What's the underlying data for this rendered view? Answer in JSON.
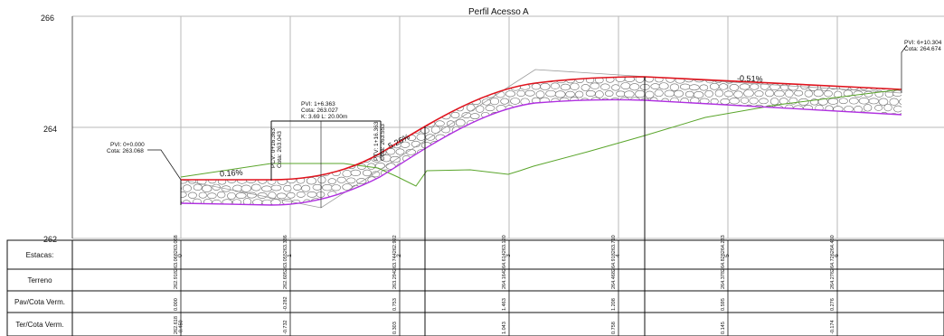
{
  "drawing": {
    "title": "Perfil Acesso A",
    "elevation_labels": [
      "266",
      "264",
      "262"
    ],
    "grades": {
      "g1": "0.16%",
      "g2": "5.26%",
      "g3": "-0.51%"
    },
    "pvi_notes": {
      "pv0": [
        "PVI: 0+0.000",
        "Cota: 263.068"
      ],
      "pv1": [
        "PVI: 1+6.363",
        "Cota: 263.027",
        "K: 3.69    L: 20.00m"
      ],
      "pv6": [
        "PVI: 6+10.304",
        "Cota: 264.674"
      ],
      "pvc": [
        "PCV: 0+16.363",
        "Cota: 263.043"
      ],
      "ptv": [
        "PTV: 1+16.363",
        "Cota: 263.553"
      ]
    },
    "colors": {
      "grid": "#b9b9b9",
      "pavement": "#e0141e",
      "subgrade": "#b030e0",
      "terrain": "#5aa52b",
      "fill_stone": "#6a6a6a",
      "text": "#111111"
    }
  },
  "table": {
    "row_labels": [
      "Estacas:",
      "Terreno",
      "Pav/Cota Verm.",
      "Ter/Cota Verm."
    ],
    "stations": [
      {
        "estaca": "0",
        "terreno": [
          "262.918",
          "263.068",
          "263.068"
        ],
        "pav": [
          "0.000"
        ],
        "ter": [
          "262.618",
          "-0.450"
        ]
      },
      {
        "estaca": "1",
        "terreno": [
          "262.605",
          "263.055",
          "263.336"
        ],
        "pav": [
          "-0.282"
        ],
        "ter": [
          "-0.732"
        ]
      },
      {
        "estaca": "2",
        "terreno": [
          "263.294",
          "263.744",
          "262.992"
        ],
        "pav": [
          "0.753"
        ],
        "ter": [
          "0.303"
        ]
      },
      {
        "estaca": "3",
        "terreno": [
          "264.164",
          "264.614",
          "263.120"
        ],
        "pav": [
          "1.463"
        ],
        "ter": [
          "1.043"
        ]
      },
      {
        "estaca": "4",
        "terreno": [
          "264.468",
          "264.918",
          "263.710"
        ],
        "pav": [
          "1.208"
        ],
        "ter": [
          "0.758"
        ]
      },
      {
        "estaca": "5",
        "terreno": [
          "264.378",
          "264.828",
          "264.233"
        ],
        "pav": [
          "0.595"
        ],
        "ter": [
          "0.145"
        ]
      },
      {
        "estaca": "6",
        "terreno": [
          "264.276",
          "264.726",
          "264.450"
        ],
        "pav": [
          "0.276"
        ],
        "ter": [
          "-0.174"
        ]
      }
    ]
  }
}
